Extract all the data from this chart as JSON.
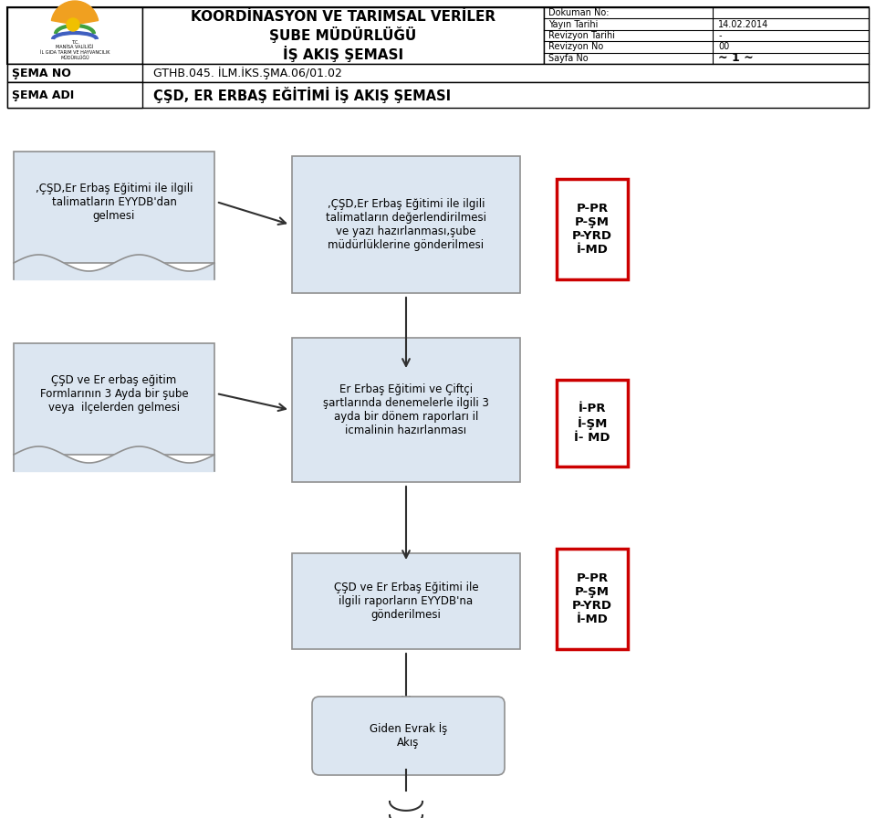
{
  "title_line1": "KOORDİNASYON VE TARIMSAL VERİLER",
  "title_line2": "ŞUBE MÜDÜRLÜĞÜ",
  "title_line3": "İŞ AKIŞ ŞEMASI",
  "doc_no_label": "Dokuman No:",
  "yayin_tarihi_label": "Yayın Tarihi",
  "yayin_tarihi_value": "14.02.2014",
  "revizyon_tarihi_label": "Revizyon Tarihi",
  "revizyon_tarihi_value": "-",
  "revizyon_no_label": "Revizyon No",
  "revizyon_no_value": "00",
  "sayfa_no_label": "Sayfa No",
  "sayfa_no_value": "~ 1 ~",
  "sema_no_label": "ŞEMA NO",
  "sema_no_value": "GTHB.045. İLM.İKS.ŞMA.06/01.02",
  "sema_adi_label": "ŞEMA ADI",
  "sema_adi_value": "ÇŞD, ER ERBAŞ EĞİTİMİ İŞ AKIŞ ŞEMASI",
  "box1_text": ",ÇŞD,Er Erbaş Eğitimi ile ilgili\ntalimatların EYYDB'dan\ngelmesi",
  "box2_text": ",ÇŞD,Er Erbaş Eğitimi ile ilgili\ntalimatların değerlendirilmesi\nve yazı hazırlanması,şube\nmüdürlüklerine gönderilmesi",
  "box_role1_text": "P-PR\nP-ŞM\nP-YRD\nİ-MD",
  "box3_text": "ÇŞD ve Er erbaş eğitim\nFormlarının 3 Ayda bir şube\nveya  ilçelerden gelmesi",
  "box4_text": "Er Erbaş Eğitimi ve Çiftçi\nşartlarında denemelerle ilgili 3\nayda bir dönem raporları il\nicmalinin hazırlanması",
  "box_role2_text": "İ-PR\nİ-ŞM\nİ- MD",
  "box5_text": "ÇŞD ve Er Erbaş Eğitimi ile\nilgili raporların EYYDB'na\ngönderilmesi",
  "box_role3_text": "P-PR\nP-ŞM\nP-YRD\nİ-MD",
  "box6_text": "Giden Evrak İş\nAkış",
  "bg_color": "#ffffff",
  "box_fill_light": "#dce6f1",
  "box_border": "#909090",
  "role_border": "#cc0000",
  "line_color": "#404040"
}
